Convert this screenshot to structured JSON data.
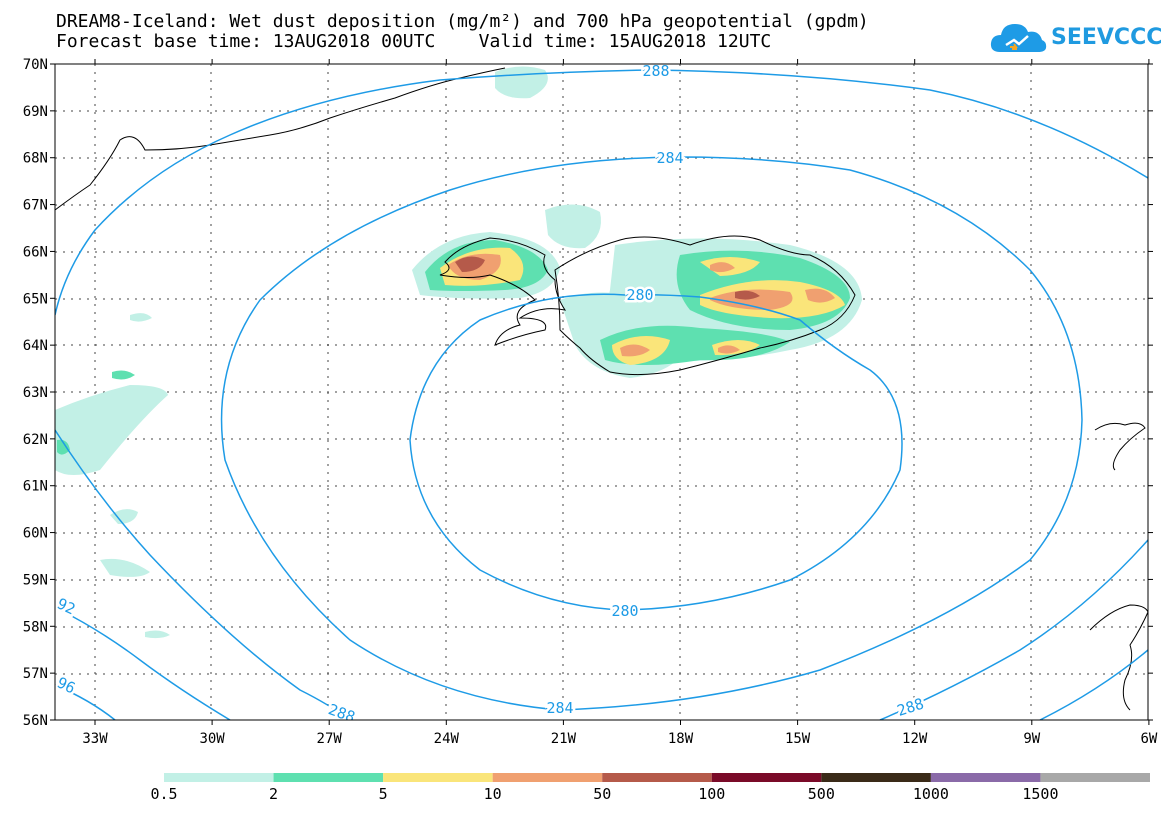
{
  "header": {
    "title_line1": "DREAM8-Iceland: Wet dust deposition (mg/m²) and 700 hPa geopotential (gpdm)",
    "title_line2": "Forecast base time: 13AUG2018 00UTC    Valid time: 15AUG2018 12UTC",
    "logo_text": "SEEVCCC"
  },
  "map": {
    "lat_labels": [
      "70N",
      "69N",
      "68N",
      "67N",
      "66N",
      "65N",
      "64N",
      "63N",
      "62N",
      "61N",
      "60N",
      "59N",
      "58N",
      "57N",
      "56N"
    ],
    "lon_labels": [
      "33W",
      "30W",
      "27W",
      "24W",
      "21W",
      "18W",
      "15W",
      "12W",
      "9W",
      "6W"
    ],
    "contours": [
      {
        "value": 280,
        "labels": [
          "280",
          "280"
        ]
      },
      {
        "value": 284,
        "labels": [
          "284",
          "284"
        ]
      },
      {
        "value": 288,
        "labels": [
          "288",
          "288",
          "288"
        ]
      },
      {
        "value": 292,
        "labels": [
          "92"
        ]
      },
      {
        "value": 296,
        "labels": [
          "96"
        ]
      }
    ],
    "contour_color": "#1e9be6"
  },
  "legend": {
    "items": [
      {
        "label": "0.5",
        "color": "#c2f0e6"
      },
      {
        "label": "2",
        "color": "#5ee0b0"
      },
      {
        "label": "5",
        "color": "#fae57a"
      },
      {
        "label": "10",
        "color": "#f0a070"
      },
      {
        "label": "50",
        "color": "#b55a4a"
      },
      {
        "label": "100",
        "color": "#7a0a28"
      },
      {
        "label": "500",
        "color": "#3a2a18"
      },
      {
        "label": "1000",
        "color": "#8a6aa8"
      },
      {
        "label": "1500",
        "color": "#a8a8a8"
      }
    ]
  }
}
